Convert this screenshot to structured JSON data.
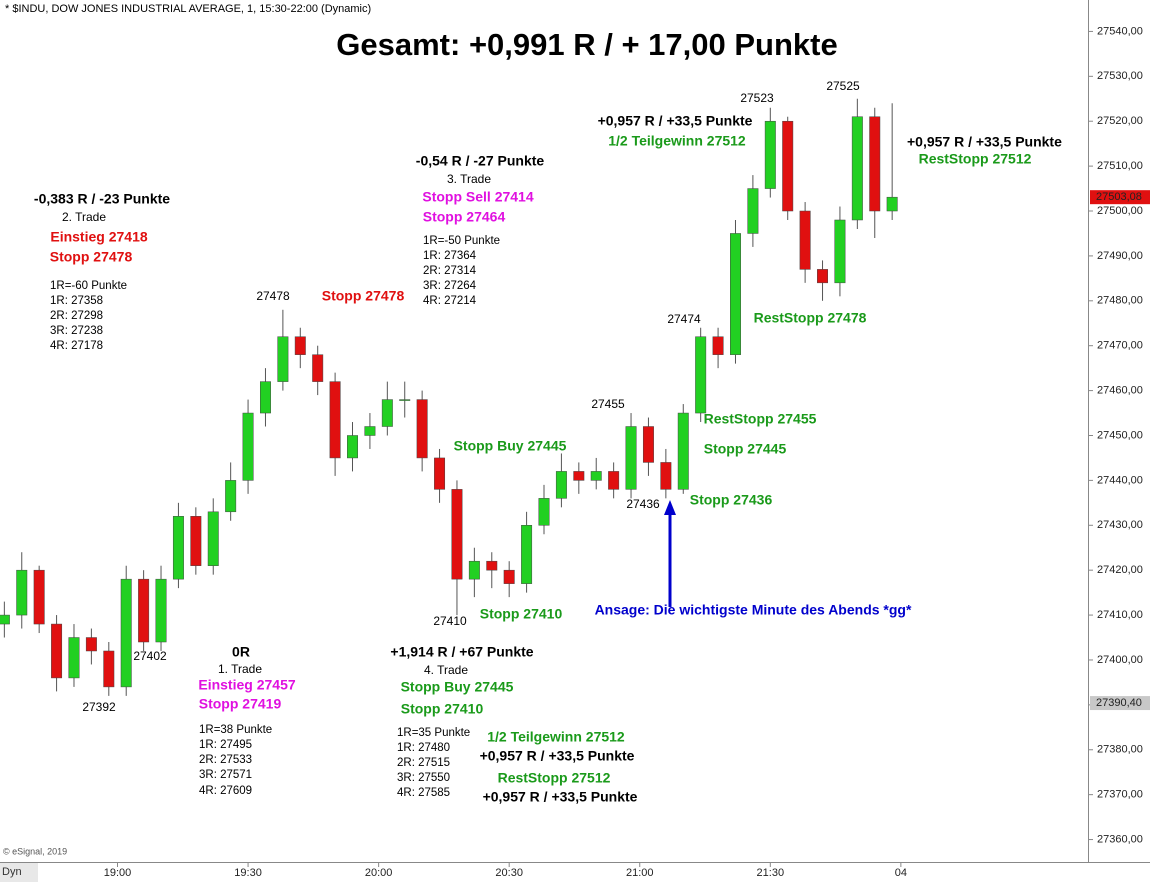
{
  "chart_data": {
    "type": "candlestick",
    "title": "Gesamt: +0,991 R / + 17,00 Punkte",
    "subtitle": "* $INDU, DOW JONES INDUSTRIAL AVERAGE, 1, 15:30-22:00 (Dynamic)",
    "credit": "© eSignal, 2019",
    "corner_label": "Dyn",
    "up_color": "#22d022",
    "down_color": "#e01010",
    "x": [
      "18:34",
      "18:38",
      "18:42",
      "18:46",
      "18:50",
      "18:54",
      "18:58",
      "19:02",
      "19:06",
      "19:10",
      "19:14",
      "19:18",
      "19:22",
      "19:26",
      "19:30",
      "19:34",
      "19:38",
      "19:42",
      "19:46",
      "19:50",
      "19:54",
      "19:58",
      "20:02",
      "20:06",
      "20:10",
      "20:14",
      "20:18",
      "20:22",
      "20:26",
      "20:30",
      "20:34",
      "20:38",
      "20:42",
      "20:46",
      "20:50",
      "20:54",
      "20:58",
      "21:02",
      "21:06",
      "21:10",
      "21:14",
      "21:18",
      "21:22",
      "21:26",
      "21:30",
      "21:34",
      "21:38",
      "21:42",
      "21:46",
      "21:50",
      "21:54",
      "21:58"
    ],
    "open": [
      27408,
      27410,
      27420,
      27408,
      27396,
      27405,
      27402,
      27394,
      27418,
      27404,
      27418,
      27432,
      27421,
      27433,
      27440,
      27455,
      27462,
      27472,
      27468,
      27462,
      27445,
      27450,
      27452,
      27458,
      27458,
      27445,
      27438,
      27418,
      27422,
      27420,
      27417,
      27430,
      27436,
      27442,
      27440,
      27442,
      27438,
      27452,
      27444,
      27438,
      27455,
      27472,
      27468,
      27495,
      27505,
      27520,
      27500,
      27487,
      27484,
      27498,
      27521,
      27500
    ],
    "high": [
      27413,
      27424,
      27421,
      27410,
      27408,
      27407,
      27404,
      27421,
      27420,
      27421,
      27435,
      27434,
      27436,
      27444,
      27458,
      27465,
      27478,
      27474,
      27470,
      27464,
      27453,
      27455,
      27462,
      27462,
      27460,
      27447,
      27440,
      27425,
      27424,
      27422,
      27433,
      27439,
      27446,
      27444,
      27445,
      27444,
      27455,
      27454,
      27447,
      27457,
      27474,
      27474,
      27498,
      27508,
      27523,
      27521,
      27502,
      27489,
      27501,
      27525,
      27523,
      27524
    ],
    "low": [
      27405,
      27407,
      27406,
      27393,
      27394,
      27399,
      27392,
      27392,
      27402,
      27402,
      27416,
      27419,
      27419,
      27431,
      27437,
      27452,
      27460,
      27465,
      27459,
      27441,
      27442,
      27447,
      27450,
      27454,
      27442,
      27435,
      27410,
      27414,
      27416,
      27414,
      27415,
      27428,
      27434,
      27437,
      27438,
      27436,
      27436,
      27441,
      27436,
      27437,
      27453,
      27465,
      27466,
      27492,
      27503,
      27498,
      27484,
      27480,
      27481,
      27496,
      27494,
      27498
    ],
    "close": [
      27410,
      27420,
      27408,
      27396,
      27405,
      27402,
      27394,
      27418,
      27404,
      27418,
      27432,
      27421,
      27433,
      27440,
      27455,
      27462,
      27472,
      27468,
      27462,
      27445,
      27450,
      27452,
      27458,
      27458,
      27445,
      27438,
      27418,
      27422,
      27420,
      27417,
      27430,
      27436,
      27442,
      27440,
      27442,
      27438,
      27452,
      27444,
      27438,
      27455,
      27472,
      27468,
      27495,
      27505,
      27520,
      27500,
      27487,
      27484,
      27498,
      27521,
      27500,
      27503.08
    ],
    "xlim": [
      "18:33",
      "22:43"
    ],
    "xticks": [
      "19:00",
      "19:30",
      "20:00",
      "20:30",
      "21:00",
      "21:30",
      {
        "value": "22:00",
        "label": "04"
      }
    ],
    "ylim": [
      27355,
      27547
    ],
    "yticks": [
      {
        "value": 27360,
        "label": "27360,00"
      },
      {
        "value": 27370,
        "label": "27370,00"
      },
      {
        "value": 27380,
        "label": "27380,00"
      },
      {
        "value": 27390,
        "label": "27390,00"
      },
      {
        "value": 27400,
        "label": "27400,00"
      },
      {
        "value": 27410,
        "label": "27410,00"
      },
      {
        "value": 27420,
        "label": "27420,00"
      },
      {
        "value": 27430,
        "label": "27430,00"
      },
      {
        "value": 27440,
        "label": "27440,00"
      },
      {
        "value": 27450,
        "label": "27450,00"
      },
      {
        "value": 27460,
        "label": "27460,00"
      },
      {
        "value": 27470,
        "label": "27470,00"
      },
      {
        "value": 27480,
        "label": "27480,00"
      },
      {
        "value": 27490,
        "label": "27490,00"
      },
      {
        "value": 27500,
        "label": "27500,00"
      },
      {
        "value": 27510,
        "label": "27510,00"
      },
      {
        "value": 27520,
        "label": "27520,00"
      },
      {
        "value": 27530,
        "label": "27530,00"
      },
      {
        "value": 27540,
        "label": "27540,00"
      }
    ],
    "price_labels": [
      {
        "value": 27503.08,
        "label": "27503,08",
        "color": "#e01010"
      },
      {
        "value": 27390.4,
        "label": "27390,40",
        "color": "#c8c8c8"
      }
    ],
    "annotations": [
      {
        "text": "-0,383 R / -23 Punkte",
        "color": "#000000"
      },
      {
        "text": "2. Trade",
        "color": "#000000"
      },
      {
        "text": "Einstieg 27418",
        "color": "#e01010"
      },
      {
        "text": "Stopp 27478",
        "color": "#e01010"
      },
      {
        "text": "1R=-60 Punkte",
        "color": "#000000"
      },
      {
        "text": "1R: 27358",
        "color": "#000000"
      },
      {
        "text": "2R: 27298",
        "color": "#000000"
      },
      {
        "text": "3R: 27238",
        "color": "#000000"
      },
      {
        "text": "4R: 27178",
        "color": "#000000"
      },
      {
        "text": "27478",
        "color": "#000000"
      },
      {
        "text": "Stopp 27478",
        "color": "#e01010"
      },
      {
        "text": "-0,54 R / -27 Punkte",
        "color": "#000000"
      },
      {
        "text": "3. Trade",
        "color": "#000000"
      },
      {
        "text": "Stopp Sell 27414",
        "color": "#e010e0"
      },
      {
        "text": "Stopp 27464",
        "color": "#e010e0"
      },
      {
        "text": "1R=-50 Punkte",
        "color": "#000000"
      },
      {
        "text": "1R: 27364",
        "color": "#000000"
      },
      {
        "text": "2R: 27314",
        "color": "#000000"
      },
      {
        "text": "3R: 27264",
        "color": "#000000"
      },
      {
        "text": "4R: 27214",
        "color": "#000000"
      },
      {
        "text": "+0,957 R / +33,5 Punkte",
        "color": "#000000"
      },
      {
        "text": "1/2 Teilgewinn 27512",
        "color": "#1a9a1a"
      },
      {
        "text": "27523",
        "color": "#000000"
      },
      {
        "text": "27525",
        "color": "#000000"
      },
      {
        "text": "+0,957 R / +33,5 Punkte",
        "color": "#000000"
      },
      {
        "text": "RestStopp 27512",
        "color": "#1a9a1a"
      },
      {
        "text": "27474",
        "color": "#000000"
      },
      {
        "text": "RestStopp 27478",
        "color": "#1a9a1a"
      },
      {
        "text": "27455",
        "color": "#000000"
      },
      {
        "text": "RestStopp 27455",
        "color": "#1a9a1a"
      },
      {
        "text": "Stopp 27445",
        "color": "#1a9a1a"
      },
      {
        "text": "Stopp Buy 27445",
        "color": "#1a9a1a"
      },
      {
        "text": "27436",
        "color": "#000000"
      },
      {
        "text": "Stopp 27436",
        "color": "#1a9a1a"
      },
      {
        "text": "Ansage: Die wichtigste Minute des Abends *gg*",
        "color": "#0000cc"
      },
      {
        "text": "27410",
        "color": "#000000"
      },
      {
        "text": "Stopp 27410",
        "color": "#1a9a1a"
      },
      {
        "text": "27402",
        "color": "#000000"
      },
      {
        "text": "27392",
        "color": "#000000"
      },
      {
        "text": "0R",
        "color": "#000000"
      },
      {
        "text": "1. Trade",
        "color": "#000000"
      },
      {
        "text": "Einstieg 27457",
        "color": "#e010e0"
      },
      {
        "text": "Stopp 27419",
        "color": "#e010e0"
      },
      {
        "text": "1R=38 Punkte",
        "color": "#000000"
      },
      {
        "text": "1R: 27495",
        "color": "#000000"
      },
      {
        "text": "2R: 27533",
        "color": "#000000"
      },
      {
        "text": "3R: 27571",
        "color": "#000000"
      },
      {
        "text": "4R: 27609",
        "color": "#000000"
      },
      {
        "text": "+1,914 R / +67 Punkte",
        "color": "#000000"
      },
      {
        "text": "4. Trade",
        "color": "#000000"
      },
      {
        "text": "Stopp Buy 27445",
        "color": "#1a9a1a"
      },
      {
        "text": "Stopp 27410",
        "color": "#1a9a1a"
      },
      {
        "text": "1R=35 Punkte",
        "color": "#000000"
      },
      {
        "text": "1R: 27480",
        "color": "#000000"
      },
      {
        "text": "2R: 27515",
        "color": "#000000"
      },
      {
        "text": "3R: 27550",
        "color": "#000000"
      },
      {
        "text": "4R: 27585",
        "color": "#000000"
      },
      {
        "text": "1/2 Teilgewinn 27512",
        "color": "#1a9a1a"
      },
      {
        "text": "+0,957 R / +33,5 Punkte",
        "color": "#000000"
      },
      {
        "text": "RestStopp 27512",
        "color": "#1a9a1a"
      },
      {
        "text": "+0,957 R / +33,5 Punkte",
        "color": "#000000"
      }
    ]
  }
}
